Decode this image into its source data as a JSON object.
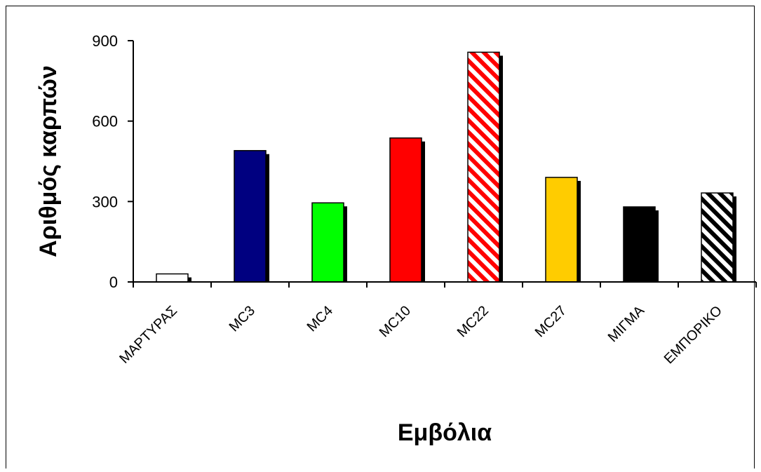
{
  "chart_data": {
    "type": "bar",
    "categories": [
      "ΜΑΡΤΥΡΑΣ",
      "MC3",
      "MC4",
      "MC10",
      "MC22",
      "MC27",
      "ΜΙΓΜΑ",
      "ΕΜΠΟΡΙΚΟ"
    ],
    "values": [
      30,
      490,
      295,
      537,
      857,
      390,
      280,
      332
    ],
    "colors": [
      "#ffffff",
      "#000080",
      "#00ff00",
      "#ff0000",
      "hatch-red",
      "#ffcc00",
      "#000000",
      "hatch-black"
    ],
    "title": "",
    "xlabel": "Εμβόλια",
    "ylabel": "Αριθμός καρπών",
    "ylim": [
      0,
      900
    ],
    "yticks": [
      0,
      300,
      600,
      900
    ],
    "grid": false,
    "legend": "none"
  }
}
